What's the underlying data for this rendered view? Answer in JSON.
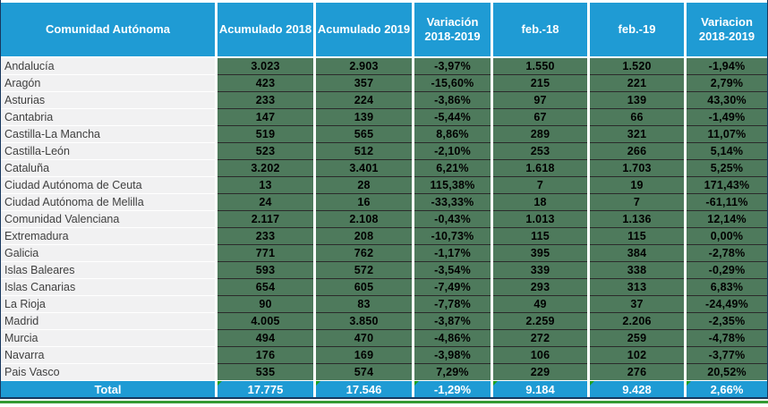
{
  "table": {
    "columns": [
      "Comunidad Autónoma",
      "Acumulado 2018",
      "Acumulado 2019",
      "Variación 2018-2019",
      "feb.-18",
      "feb.-19",
      "Variacion 2018-2019"
    ],
    "rows": [
      {
        "name": "Andalucía",
        "values": [
          "3.023",
          "2.903",
          "-3,97%",
          "1.550",
          "1.520",
          "-1,94%"
        ]
      },
      {
        "name": "Aragón",
        "values": [
          "423",
          "357",
          "-15,60%",
          "215",
          "221",
          "2,79%"
        ]
      },
      {
        "name": "Asturias",
        "values": [
          "233",
          "224",
          "-3,86%",
          "97",
          "139",
          "43,30%"
        ]
      },
      {
        "name": "Cantabria",
        "values": [
          "147",
          "139",
          "-5,44%",
          "67",
          "66",
          "-1,49%"
        ]
      },
      {
        "name": "Castilla-La Mancha",
        "values": [
          "519",
          "565",
          "8,86%",
          "289",
          "321",
          "11,07%"
        ]
      },
      {
        "name": "Castilla-León",
        "values": [
          "523",
          "512",
          "-2,10%",
          "253",
          "266",
          "5,14%"
        ]
      },
      {
        "name": "Cataluña",
        "values": [
          "3.202",
          "3.401",
          "6,21%",
          "1.618",
          "1.703",
          "5,25%"
        ]
      },
      {
        "name": "Ciudad Autónoma de Ceuta",
        "values": [
          "13",
          "28",
          "115,38%",
          "7",
          "19",
          "171,43%"
        ]
      },
      {
        "name": "Ciudad Autónoma de Melilla",
        "values": [
          "24",
          "16",
          "-33,33%",
          "18",
          "7",
          "-61,11%"
        ]
      },
      {
        "name": "Comunidad Valenciana",
        "values": [
          "2.117",
          "2.108",
          "-0,43%",
          "1.013",
          "1.136",
          "12,14%"
        ]
      },
      {
        "name": "Extremadura",
        "values": [
          "233",
          "208",
          "-10,73%",
          "115",
          "115",
          "0,00%"
        ]
      },
      {
        "name": "Galicia",
        "values": [
          "771",
          "762",
          "-1,17%",
          "395",
          "384",
          "-2,78%"
        ]
      },
      {
        "name": "Islas Baleares",
        "values": [
          "593",
          "572",
          "-3,54%",
          "339",
          "338",
          "-0,29%"
        ]
      },
      {
        "name": "Islas Canarias",
        "values": [
          "654",
          "605",
          "-7,49%",
          "293",
          "313",
          "6,83%"
        ]
      },
      {
        "name": "La Rioja",
        "values": [
          "90",
          "83",
          "-7,78%",
          "49",
          "37",
          "-24,49%"
        ]
      },
      {
        "name": "Madrid",
        "values": [
          "4.005",
          "3.850",
          "-3,87%",
          "2.259",
          "2.206",
          "-2,35%"
        ]
      },
      {
        "name": "Murcia",
        "values": [
          "494",
          "470",
          "-4,86%",
          "272",
          "259",
          "-4,78%"
        ]
      },
      {
        "name": "Navarra",
        "values": [
          "176",
          "169",
          "-3,98%",
          "106",
          "102",
          "-3,77%"
        ]
      },
      {
        "name": "Pais Vasco",
        "values": [
          "535",
          "574",
          "7,29%",
          "229",
          "276",
          "20,52%"
        ]
      }
    ],
    "total": {
      "label": "Total",
      "values": [
        "17.775",
        "17.546",
        "-1,29%",
        "9.184",
        "9.428",
        "2,66%"
      ]
    }
  },
  "colors": {
    "header_blue": "#1F9BD4",
    "cell_green": "#4E7A5C",
    "label_row_bg": "#F1F1F2",
    "label_text": "#3F3F3F",
    "total_row_bg": "#1F9BD4",
    "dark_rule": "#17375E",
    "bottom_green_rule": "#339A33",
    "corner_indicator_green": "#1FA11F"
  }
}
